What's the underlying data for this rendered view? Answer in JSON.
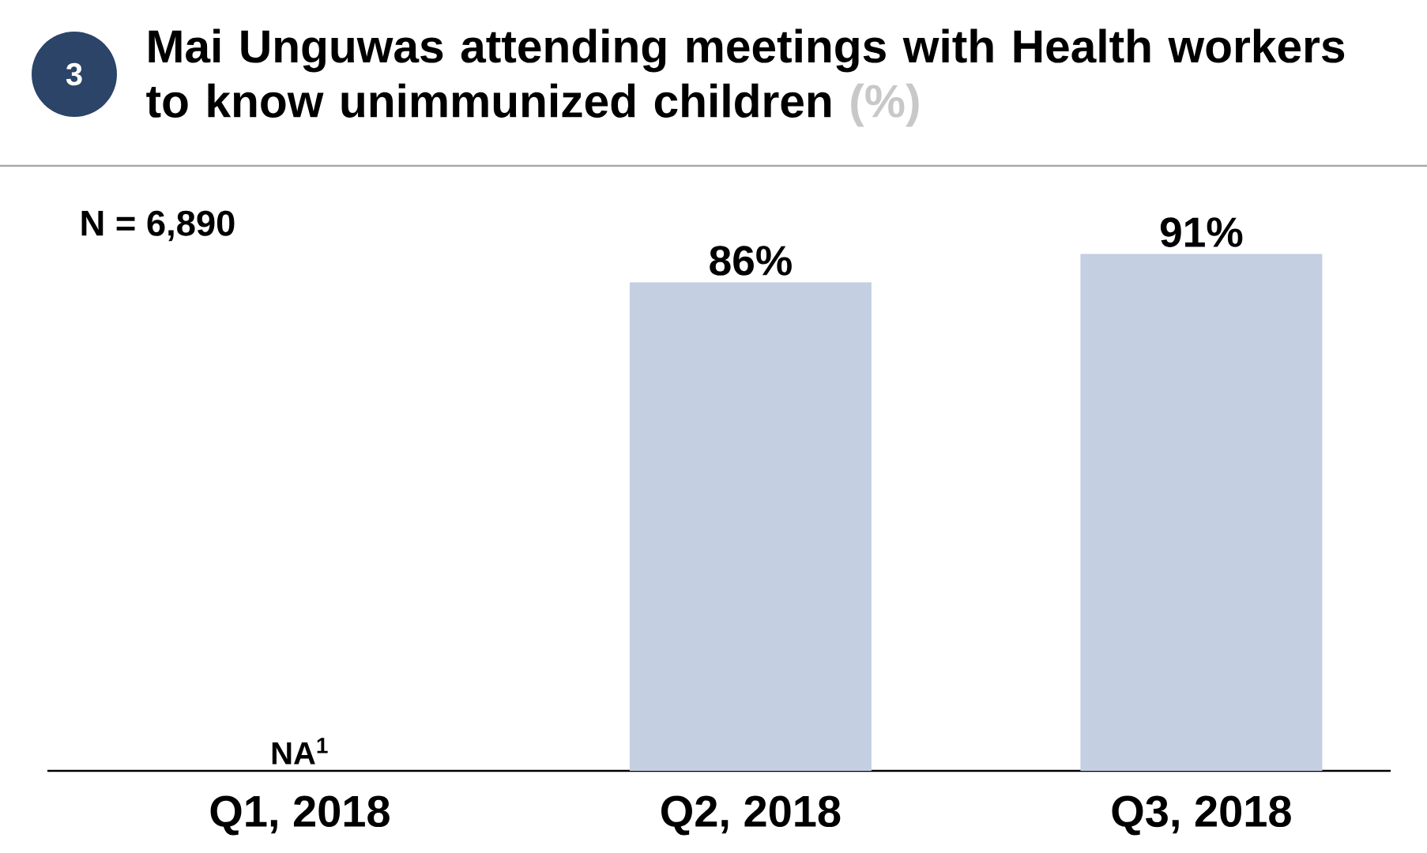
{
  "chart_data": {
    "type": "bar",
    "title": "Mai Unguwas attending meetings with Health workers to know unimmunized children",
    "subtitle": "(%)",
    "categories": [
      "Q1, 2018",
      "Q2, 2018",
      "Q3, 2018"
    ],
    "values": [
      null,
      86,
      91
    ],
    "value_labels": [
      "NA$^{1}$",
      "86%",
      "91%"
    ],
    "color": "#c5cfe2",
    "annotations": [
      "3",
      "N = 6,890"
    ]
  }
}
